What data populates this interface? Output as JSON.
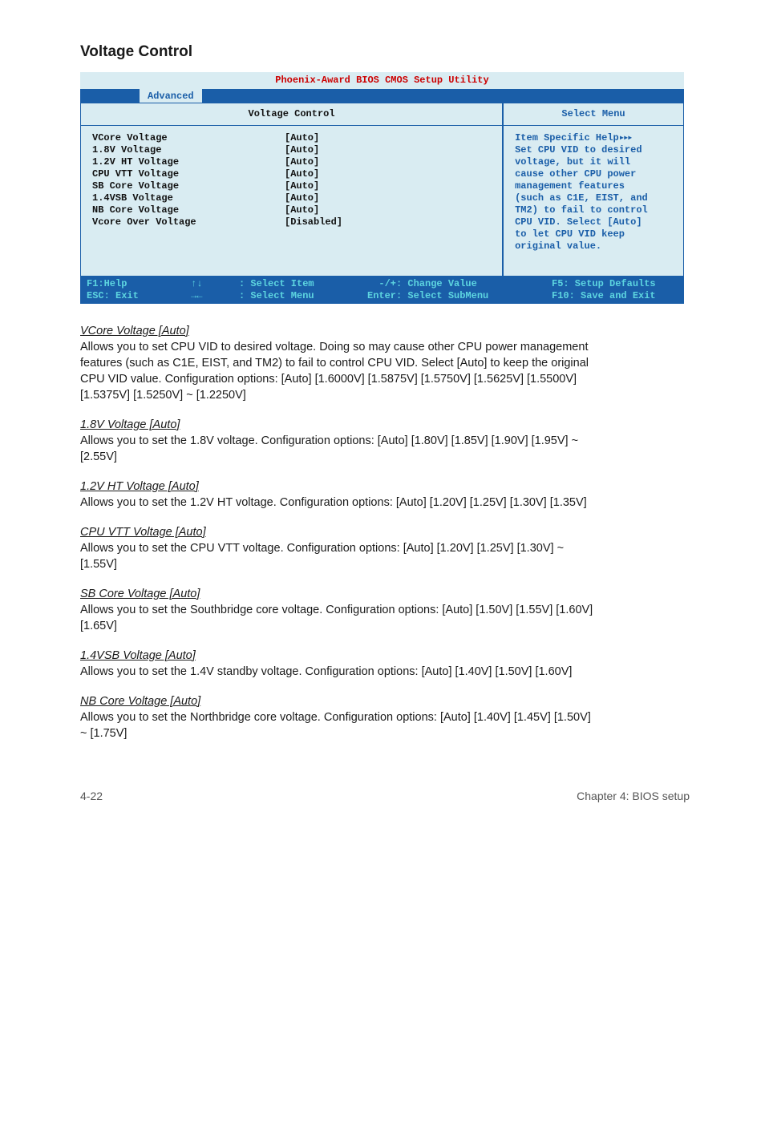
{
  "section_title": "Voltage Control",
  "bios": {
    "top": "Phoenix-Award BIOS CMOS Setup Utility",
    "tab": "Advanced",
    "left_header": "Voltage Control",
    "right_header": "Select  Menu",
    "rows": [
      {
        "label": "VCore Voltage",
        "value": "[Auto]"
      },
      {
        "label": "1.8V Voltage",
        "value": "[Auto]"
      },
      {
        "label": "1.2V HT Voltage",
        "value": "[Auto]"
      },
      {
        "label": "CPU VTT Voltage",
        "value": "[Auto]"
      },
      {
        "label": "SB Core Voltage",
        "value": "[Auto]"
      },
      {
        "label": "1.4VSB Voltage",
        "value": "[Auto]"
      },
      {
        "label": "NB Core Voltage",
        "value": "[Auto]"
      },
      {
        "label": "Vcore Over Voltage",
        "value": "[Disabled]"
      }
    ],
    "help_title": "Item Specific Help",
    "help_lines": [
      "",
      "Set CPU VID to desired",
      "voltage, but it will",
      "cause other CPU power",
      "management features",
      "(such as C1E, EIST, and",
      "TM2) to fail to control",
      "CPU VID. Select [Auto]",
      "to let CPU VID keep",
      "original value."
    ],
    "foot": {
      "f1": "F1:Help",
      "esc": "ESC: Exit",
      "arrows_v": "↑↓",
      "arrows_h": "→←",
      "sel_item": ": Select Item",
      "sel_menu": ": Select Menu",
      "chg": "  -/+: Change Value",
      "ent": "Enter: Select SubMenu",
      "f5": "F5: Setup Defaults",
      "f10": "F10: Save and Exit"
    }
  },
  "entries": [
    {
      "title": "VCore Voltage [Auto]",
      "body": "Allows you to set CPU VID to desired voltage. Doing so may cause other CPU power management features (such as C1E, EIST, and TM2) to fail to control CPU VID. Select [Auto] to keep the original CPU VID value. Configuration options: [Auto] [1.6000V] [1.5875V] [1.5750V] [1.5625V] [1.5500V] [1.5375V] [1.5250V] ~ [1.2250V]"
    },
    {
      "title": "1.8V Voltage [Auto]",
      "body": "Allows you to set the 1.8V voltage.\nConfiguration options: [Auto] [1.80V] [1.85V] [1.90V] [1.95V] ~ [2.55V]"
    },
    {
      "title": "1.2V HT Voltage [Auto]",
      "body": "Allows you to set the 1.2V HT voltage.\nConfiguration options: [Auto] [1.20V] [1.25V] [1.30V] [1.35V]"
    },
    {
      "title": "CPU VTT Voltage [Auto]",
      "body": "Allows you to set the CPU VTT voltage.\nConfiguration options: [Auto] [1.20V] [1.25V] [1.30V] ~ [1.55V]"
    },
    {
      "title": "SB Core Voltage [Auto]",
      "body": "Allows you to set the Southbridge core voltage.\nConfiguration options: [Auto] [1.50V] [1.55V] [1.60V] [1.65V]"
    },
    {
      "title": "1.4VSB Voltage [Auto]",
      "body": "Allows you to set the 1.4V standby voltage.\nConfiguration options: [Auto] [1.40V] [1.50V] [1.60V]"
    },
    {
      "title": "NB Core Voltage [Auto]",
      "body": "Allows you to set the Northbridge core voltage.\nConfiguration options: [Auto] [1.40V] [1.45V] [1.50V] ~ [1.75V]"
    }
  ],
  "footer": {
    "left": "4-22",
    "right": "Chapter 4: BIOS setup"
  }
}
